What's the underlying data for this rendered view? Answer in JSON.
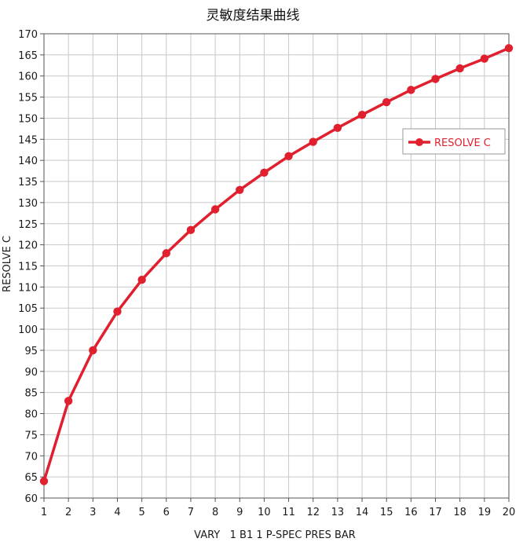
{
  "chart_data": {
    "type": "line",
    "title": "灵敏度结果曲线",
    "xlabel": "VARY   1 B1 1 P-SPEC PRES BAR",
    "ylabel": "RESOLVE C",
    "xlim": [
      1,
      20
    ],
    "ylim": [
      60,
      170
    ],
    "x_ticks": [
      1,
      2,
      3,
      4,
      5,
      6,
      7,
      8,
      9,
      10,
      11,
      12,
      13,
      14,
      15,
      16,
      17,
      18,
      19,
      20
    ],
    "y_ticks": [
      60,
      65,
      70,
      75,
      80,
      85,
      90,
      95,
      100,
      105,
      110,
      115,
      120,
      125,
      130,
      135,
      140,
      145,
      150,
      155,
      160,
      165,
      170
    ],
    "grid": true,
    "legend_position": "right",
    "series": [
      {
        "name": "RESOLVE C",
        "color": "#e0202e",
        "marker": "circle",
        "x": [
          1,
          2,
          3,
          4,
          5,
          6,
          7,
          8,
          9,
          10,
          11,
          12,
          13,
          14,
          15,
          16,
          17,
          18,
          19,
          20
        ],
        "values": [
          64.0,
          83.0,
          95.0,
          104.2,
          111.7,
          118.0,
          123.5,
          128.4,
          133.0,
          137.1,
          141.0,
          144.4,
          147.7,
          150.8,
          153.8,
          156.7,
          159.3,
          161.8,
          164.1,
          166.6
        ]
      }
    ]
  }
}
